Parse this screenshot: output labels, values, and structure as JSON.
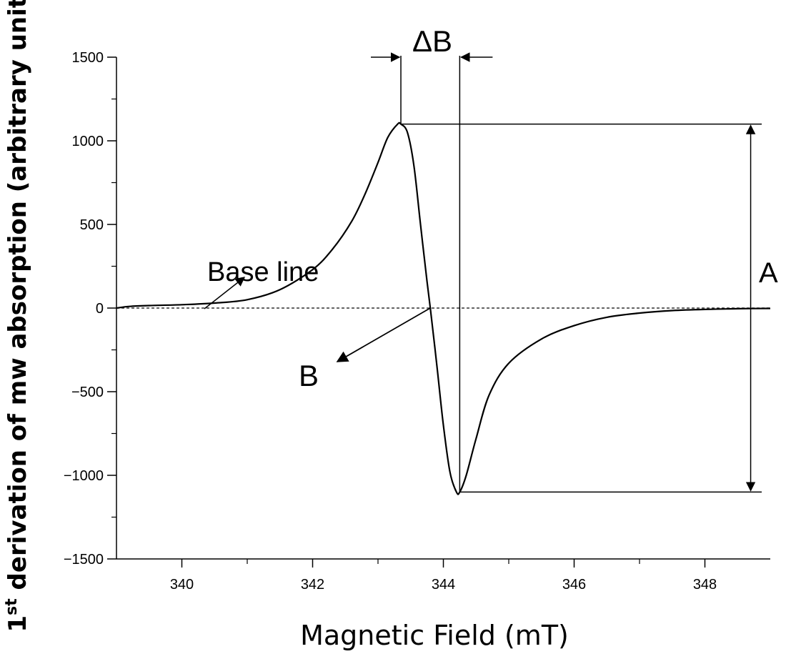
{
  "chart_data": {
    "type": "line",
    "title": "",
    "xlabel": "Magnetic Field (mT)",
    "ylabel_main": "1",
    "ylabel_sup": "st",
    "ylabel_rest": " derivation of mw absorption (arbitrary unit)",
    "xlim": [
      339,
      349
    ],
    "ylim": [
      -1500,
      1500
    ],
    "x_ticks": [
      340,
      342,
      344,
      346,
      348
    ],
    "y_ticks": [
      -1500,
      -1000,
      -500,
      0,
      500,
      1000,
      1500
    ],
    "x_tick_labels": [
      "340",
      "342",
      "344",
      "346",
      "348"
    ],
    "y_tick_labels": [
      "−1500",
      "−1000",
      "−500",
      "0",
      "500",
      "1000",
      "1500"
    ],
    "grid": false,
    "legend": "none",
    "series": [
      {
        "x": [
          339.0,
          339.2,
          339.5,
          340.0,
          340.5,
          341.0,
          341.5,
          342.0,
          342.3,
          342.6,
          342.8,
          343.0,
          343.15,
          343.3,
          343.35,
          343.45,
          343.55,
          343.65,
          343.75,
          343.8,
          343.9,
          344.0,
          344.1,
          344.2,
          344.25,
          344.35,
          344.5,
          344.7,
          345.0,
          345.5,
          346.0,
          346.5,
          347.0,
          347.5,
          348.0,
          348.5,
          349.0
        ],
        "y": [
          0,
          10,
          15,
          20,
          30,
          50,
          110,
          230,
          350,
          520,
          680,
          870,
          1020,
          1100,
          1100,
          1050,
          850,
          500,
          160,
          0,
          -340,
          -700,
          -980,
          -1100,
          -1100,
          -1000,
          -780,
          -520,
          -330,
          -185,
          -105,
          -55,
          -30,
          -15,
          -8,
          -4,
          -2
        ]
      }
    ],
    "annotations": {
      "baseline_label": "Base line",
      "center_label": "B",
      "width_label": "ΔB",
      "amplitude_label": "A"
    },
    "markers": {
      "peak_x": 343.35,
      "peak_y": 1100,
      "trough_x": 344.25,
      "trough_y": -1100,
      "center_x": 343.8,
      "line_right_x": 349.0,
      "amplitude_x": 348.7
    }
  }
}
